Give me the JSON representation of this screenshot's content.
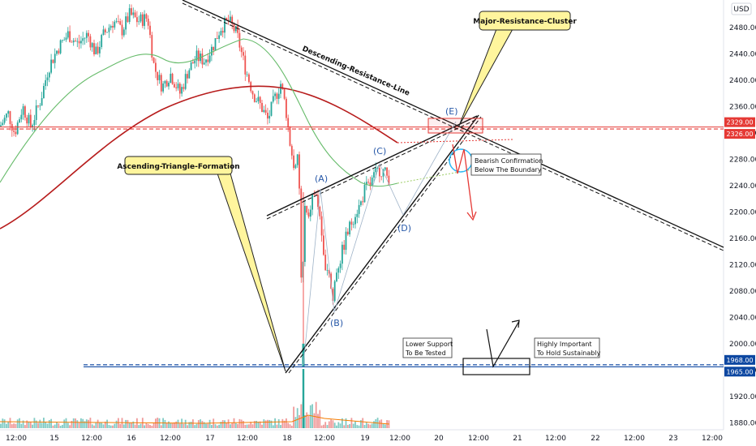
{
  "chart_data": {
    "type": "candlestick",
    "currency": "USD",
    "y_axis_ticks": [
      1880,
      1920,
      1960,
      2000,
      2040,
      2080,
      2120,
      2160,
      2200,
      2240,
      2280,
      2320,
      2360,
      2400,
      2440,
      2480
    ],
    "ylim": [
      1873,
      2512
    ],
    "x_axis_labels": [
      "12:00",
      "15",
      "12:00",
      "16",
      "12:00",
      "17",
      "12:00",
      "18",
      "12:00",
      "19",
      "12:00",
      "20",
      "12:00",
      "21",
      "12:00",
      "22",
      "12:00",
      "23",
      "12:00"
    ],
    "price_tags": [
      {
        "value": "2329.00",
        "color": "#e53935"
      },
      {
        "value": "2326.00",
        "color": "#e53935"
      },
      {
        "value": "1968.00",
        "color": "#0d47a1"
      },
      {
        "value": "1965.00",
        "color": "#0d47a1"
      }
    ],
    "horizontal_levels": [
      {
        "price": 2329,
        "color": "#e53935",
        "style": "solid"
      },
      {
        "price": 2326,
        "color": "#e53935",
        "style": "dashed"
      },
      {
        "price": 1968,
        "color": "#0d47a1",
        "style": "dashed"
      },
      {
        "price": 1965,
        "color": "#0d47a1",
        "style": "solid"
      }
    ],
    "wave_labels": [
      "(A)",
      "(B)",
      "(C)",
      "(D)",
      "(E)"
    ],
    "trendline_labels": [
      "Descending-Resistance-Line"
    ],
    "callouts": [
      "Major-Resistance-Cluster",
      "Ascending-Triangle-Formation"
    ],
    "notes": [
      [
        "Bearish Confirmation",
        "Below The Boundary"
      ],
      [
        "Lower Support",
        "To Be Tested"
      ],
      [
        "Highly Important",
        "To Hold Sustainably"
      ]
    ],
    "grid": false
  }
}
